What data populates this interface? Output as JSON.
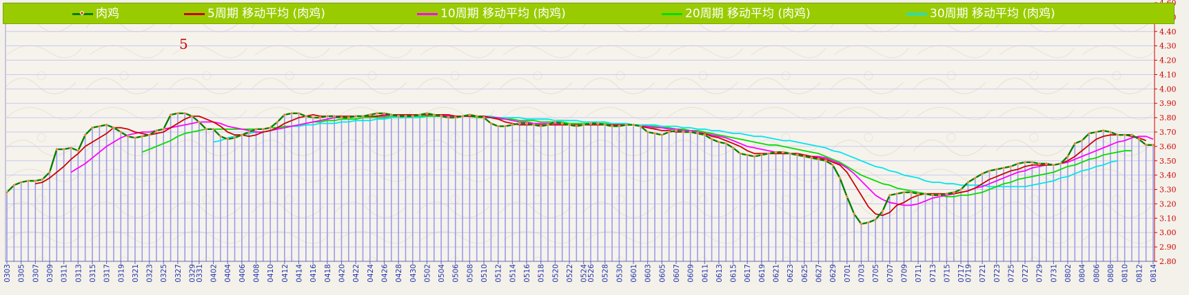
{
  "legend": {
    "items": [
      {
        "label": "肉鸡",
        "color": "#008000",
        "marker": true
      },
      {
        "label": "5周期 移动平均 (肉鸡)",
        "color": "#cc0000"
      },
      {
        "label": "10周期 移动平均 (肉鸡)",
        "color": "#ff00ff"
      },
      {
        "label": "20周期 移动平均 (肉鸡)",
        "color": "#00dd00"
      },
      {
        "label": "30周期 移动平均 (肉鸡)",
        "color": "#00e5ee"
      }
    ]
  },
  "period_label": "5",
  "chart_data": {
    "type": "line",
    "title": "",
    "xlabel": "",
    "ylabel": "",
    "ylim": [
      2.8,
      4.6
    ],
    "y_ticks": [
      "2.80",
      "2.90",
      "3.00",
      "3.10",
      "3.20",
      "3.30",
      "3.40",
      "3.50",
      "3.60",
      "3.70",
      "3.80",
      "3.90",
      "4.00",
      "4.10",
      "4.20",
      "4.30",
      "4.40",
      "4.50",
      "4.60"
    ],
    "x_tick_labels": [
      "0303",
      "0305",
      "0307",
      "0309",
      "0311",
      "0313",
      "0315",
      "0317",
      "0319",
      "0321",
      "0323",
      "0325",
      "0327",
      "0329",
      "0331",
      "0402",
      "0404",
      "0406",
      "0408",
      "0410",
      "0412",
      "0414",
      "0416",
      "0418",
      "0420",
      "0422",
      "0424",
      "0426",
      "0428",
      "0430",
      "0502",
      "0504",
      "0506",
      "0508",
      "0510",
      "0512",
      "0514",
      "0516",
      "0518",
      "0520",
      "0522",
      "0524",
      "0526",
      "0528",
      "0530",
      "0601",
      "0603",
      "0605",
      "0607",
      "0609",
      "0611",
      "0613",
      "0615",
      "0617",
      "0619",
      "0621",
      "0623",
      "0625",
      "0627",
      "0629",
      "0701",
      "0703",
      "0705",
      "0707",
      "0709",
      "0711",
      "0713",
      "0715",
      "0717",
      "0719",
      "0721",
      "0723",
      "0725",
      "0727",
      "0729",
      "0731",
      "0802",
      "0804",
      "0806",
      "0808",
      "0810",
      "0812",
      "0814"
    ],
    "grid": true,
    "legend_position": "top",
    "series": [
      {
        "name": "肉鸡",
        "color": "#008000",
        "values": [
          3.28,
          3.33,
          3.35,
          3.36,
          3.36,
          3.37,
          3.42,
          3.58,
          3.58,
          3.59,
          3.57,
          3.68,
          3.73,
          3.74,
          3.75,
          3.73,
          3.7,
          3.67,
          3.66,
          3.67,
          3.68,
          3.71,
          3.72,
          3.82,
          3.83,
          3.83,
          3.81,
          3.77,
          3.72,
          3.72,
          3.67,
          3.65,
          3.66,
          3.68,
          3.7,
          3.72,
          3.72,
          3.73,
          3.77,
          3.82,
          3.83,
          3.83,
          3.81,
          3.8,
          3.8,
          3.81,
          3.81,
          3.8,
          3.8,
          3.81,
          3.81,
          3.82,
          3.83,
          3.83,
          3.82,
          3.81,
          3.81,
          3.81,
          3.82,
          3.83,
          3.82,
          3.81,
          3.8,
          3.8,
          3.81,
          3.82,
          3.81,
          3.8,
          3.76,
          3.74,
          3.74,
          3.75,
          3.76,
          3.76,
          3.75,
          3.74,
          3.75,
          3.77,
          3.76,
          3.75,
          3.74,
          3.75,
          3.76,
          3.76,
          3.75,
          3.74,
          3.74,
          3.75,
          3.75,
          3.74,
          3.7,
          3.69,
          3.68,
          3.7,
          3.71,
          3.7,
          3.7,
          3.69,
          3.68,
          3.65,
          3.63,
          3.62,
          3.59,
          3.55,
          3.54,
          3.53,
          3.54,
          3.55,
          3.56,
          3.56,
          3.55,
          3.54,
          3.53,
          3.52,
          3.51,
          3.5,
          3.47,
          3.38,
          3.25,
          3.13,
          3.06,
          3.07,
          3.09,
          3.15,
          3.26,
          3.27,
          3.28,
          3.28,
          3.27,
          3.27,
          3.26,
          3.26,
          3.27,
          3.28,
          3.3,
          3.35,
          3.38,
          3.41,
          3.43,
          3.44,
          3.45,
          3.46,
          3.48,
          3.49,
          3.49,
          3.48,
          3.48,
          3.47,
          3.48,
          3.53,
          3.62,
          3.64,
          3.69,
          3.7,
          3.71,
          3.7,
          3.68,
          3.68,
          3.68,
          3.65,
          3.61,
          3.61
        ]
      },
      {
        "name": "5周期 移动平均 (肉鸡)",
        "color": "#cc0000",
        "values": [
          null,
          null,
          null,
          null,
          3.34,
          3.35,
          3.38,
          3.42,
          3.46,
          3.51,
          3.55,
          3.6,
          3.63,
          3.66,
          3.69,
          3.73,
          3.73,
          3.72,
          3.7,
          3.69,
          3.68,
          3.69,
          3.7,
          3.73,
          3.76,
          3.79,
          3.81,
          3.81,
          3.79,
          3.77,
          3.74,
          3.7,
          3.68,
          3.68,
          3.67,
          3.68,
          3.7,
          3.71,
          3.73,
          3.76,
          3.78,
          3.8,
          3.81,
          3.82,
          3.81,
          3.81,
          3.81,
          3.81,
          3.81,
          3.81,
          3.81,
          3.81,
          3.81,
          3.82,
          3.82,
          3.82,
          3.82,
          3.82,
          3.82,
          3.82,
          3.82,
          3.82,
          3.82,
          3.81,
          3.81,
          3.81,
          3.81,
          3.81,
          3.8,
          3.79,
          3.77,
          3.76,
          3.75,
          3.75,
          3.75,
          3.75,
          3.75,
          3.75,
          3.75,
          3.75,
          3.75,
          3.75,
          3.75,
          3.75,
          3.75,
          3.75,
          3.75,
          3.75,
          3.75,
          3.74,
          3.73,
          3.72,
          3.71,
          3.71,
          3.7,
          3.7,
          3.7,
          3.69,
          3.69,
          3.67,
          3.66,
          3.64,
          3.62,
          3.6,
          3.57,
          3.55,
          3.55,
          3.55,
          3.55,
          3.55,
          3.55,
          3.55,
          3.54,
          3.53,
          3.52,
          3.51,
          3.49,
          3.47,
          3.42,
          3.34,
          3.26,
          3.18,
          3.13,
          3.12,
          3.14,
          3.19,
          3.21,
          3.24,
          3.26,
          3.27,
          3.27,
          3.27,
          3.27,
          3.27,
          3.28,
          3.29,
          3.31,
          3.34,
          3.37,
          3.39,
          3.41,
          3.43,
          3.44,
          3.46,
          3.47,
          3.47,
          3.47,
          3.47,
          3.48,
          3.5,
          3.53,
          3.57,
          3.61,
          3.65,
          3.67,
          3.68,
          3.68,
          3.68,
          3.67,
          3.66,
          3.64
        ]
      },
      {
        "name": "10周期 移动平均 (肉鸡)",
        "color": "#ff00ff",
        "values": [
          null,
          null,
          null,
          null,
          null,
          null,
          null,
          null,
          null,
          3.42,
          3.45,
          3.48,
          3.52,
          3.56,
          3.6,
          3.63,
          3.66,
          3.68,
          3.69,
          3.7,
          3.7,
          3.71,
          3.72,
          3.73,
          3.74,
          3.75,
          3.76,
          3.77,
          3.77,
          3.77,
          3.76,
          3.74,
          3.73,
          3.72,
          3.71,
          3.7,
          3.7,
          3.71,
          3.72,
          3.73,
          3.74,
          3.75,
          3.76,
          3.77,
          3.78,
          3.79,
          3.8,
          3.8,
          3.8,
          3.81,
          3.81,
          3.81,
          3.81,
          3.81,
          3.82,
          3.82,
          3.82,
          3.82,
          3.82,
          3.82,
          3.82,
          3.82,
          3.81,
          3.81,
          3.81,
          3.81,
          3.81,
          3.8,
          3.8,
          3.8,
          3.79,
          3.78,
          3.77,
          3.77,
          3.76,
          3.76,
          3.76,
          3.76,
          3.75,
          3.75,
          3.75,
          3.75,
          3.75,
          3.75,
          3.75,
          3.75,
          3.75,
          3.75,
          3.75,
          3.74,
          3.74,
          3.73,
          3.73,
          3.72,
          3.72,
          3.71,
          3.71,
          3.7,
          3.69,
          3.68,
          3.67,
          3.66,
          3.64,
          3.62,
          3.6,
          3.59,
          3.58,
          3.57,
          3.56,
          3.55,
          3.55,
          3.55,
          3.54,
          3.53,
          3.53,
          3.52,
          3.5,
          3.48,
          3.45,
          3.41,
          3.36,
          3.31,
          3.26,
          3.23,
          3.21,
          3.2,
          3.19,
          3.19,
          3.2,
          3.22,
          3.24,
          3.25,
          3.26,
          3.27,
          3.28,
          3.29,
          3.31,
          3.32,
          3.34,
          3.36,
          3.38,
          3.4,
          3.42,
          3.43,
          3.45,
          3.46,
          3.47,
          3.47,
          3.48,
          3.49,
          3.51,
          3.53,
          3.55,
          3.57,
          3.59,
          3.61,
          3.63,
          3.64,
          3.66,
          3.67,
          3.67,
          3.65
        ]
      },
      {
        "name": "20周期 移动平均 (肉鸡)",
        "color": "#00dd00",
        "values": [
          null,
          null,
          null,
          null,
          null,
          null,
          null,
          null,
          null,
          null,
          null,
          null,
          null,
          null,
          null,
          null,
          null,
          null,
          null,
          3.56,
          3.58,
          3.6,
          3.62,
          3.64,
          3.67,
          3.69,
          3.7,
          3.71,
          3.72,
          3.72,
          3.72,
          3.72,
          3.72,
          3.72,
          3.72,
          3.72,
          3.72,
          3.73,
          3.73,
          3.74,
          3.74,
          3.75,
          3.76,
          3.77,
          3.77,
          3.78,
          3.78,
          3.79,
          3.79,
          3.79,
          3.8,
          3.8,
          3.8,
          3.8,
          3.81,
          3.81,
          3.81,
          3.81,
          3.81,
          3.81,
          3.81,
          3.81,
          3.81,
          3.81,
          3.81,
          3.81,
          3.8,
          3.8,
          3.8,
          3.79,
          3.79,
          3.79,
          3.78,
          3.78,
          3.78,
          3.77,
          3.77,
          3.77,
          3.77,
          3.76,
          3.76,
          3.76,
          3.76,
          3.76,
          3.76,
          3.75,
          3.75,
          3.75,
          3.75,
          3.74,
          3.74,
          3.74,
          3.73,
          3.73,
          3.72,
          3.72,
          3.71,
          3.71,
          3.7,
          3.69,
          3.68,
          3.67,
          3.66,
          3.65,
          3.64,
          3.63,
          3.62,
          3.61,
          3.61,
          3.6,
          3.59,
          3.58,
          3.57,
          3.56,
          3.55,
          3.53,
          3.51,
          3.49,
          3.46,
          3.43,
          3.4,
          3.38,
          3.36,
          3.34,
          3.33,
          3.31,
          3.3,
          3.29,
          3.28,
          3.27,
          3.26,
          3.26,
          3.25,
          3.25,
          3.26,
          3.26,
          3.27,
          3.28,
          3.3,
          3.32,
          3.34,
          3.35,
          3.37,
          3.38,
          3.39,
          3.4,
          3.41,
          3.42,
          3.44,
          3.46,
          3.47,
          3.49,
          3.51,
          3.52,
          3.54,
          3.55,
          3.56,
          3.57,
          3.57
        ]
      },
      {
        "name": "30周期 移动平均 (肉鸡)",
        "color": "#00e5ee",
        "values": [
          null,
          null,
          null,
          null,
          null,
          null,
          null,
          null,
          null,
          null,
          null,
          null,
          null,
          null,
          null,
          null,
          null,
          null,
          null,
          null,
          null,
          null,
          null,
          null,
          null,
          null,
          null,
          null,
          null,
          3.63,
          3.64,
          3.66,
          3.67,
          3.68,
          3.69,
          3.7,
          3.7,
          3.71,
          3.72,
          3.73,
          3.74,
          3.74,
          3.75,
          3.75,
          3.76,
          3.76,
          3.76,
          3.77,
          3.77,
          3.78,
          3.78,
          3.78,
          3.79,
          3.79,
          3.8,
          3.8,
          3.8,
          3.8,
          3.8,
          3.81,
          3.81,
          3.81,
          3.81,
          3.81,
          3.81,
          3.81,
          3.81,
          3.81,
          3.81,
          3.8,
          3.8,
          3.8,
          3.8,
          3.79,
          3.79,
          3.79,
          3.79,
          3.78,
          3.78,
          3.78,
          3.78,
          3.77,
          3.77,
          3.77,
          3.77,
          3.76,
          3.76,
          3.76,
          3.75,
          3.75,
          3.75,
          3.75,
          3.74,
          3.74,
          3.74,
          3.73,
          3.73,
          3.72,
          3.72,
          3.71,
          3.71,
          3.7,
          3.69,
          3.69,
          3.68,
          3.67,
          3.67,
          3.66,
          3.65,
          3.64,
          3.64,
          3.63,
          3.62,
          3.61,
          3.6,
          3.59,
          3.57,
          3.56,
          3.54,
          3.52,
          3.5,
          3.48,
          3.46,
          3.45,
          3.43,
          3.42,
          3.4,
          3.39,
          3.38,
          3.36,
          3.35,
          3.35,
          3.34,
          3.34,
          3.33,
          3.33,
          3.33,
          3.33,
          3.32,
          3.32,
          3.32,
          3.32,
          3.32,
          3.32,
          3.33,
          3.34,
          3.35,
          3.36,
          3.38,
          3.39,
          3.41,
          3.43,
          3.44,
          3.46,
          3.47,
          3.49,
          3.5
        ]
      }
    ]
  }
}
